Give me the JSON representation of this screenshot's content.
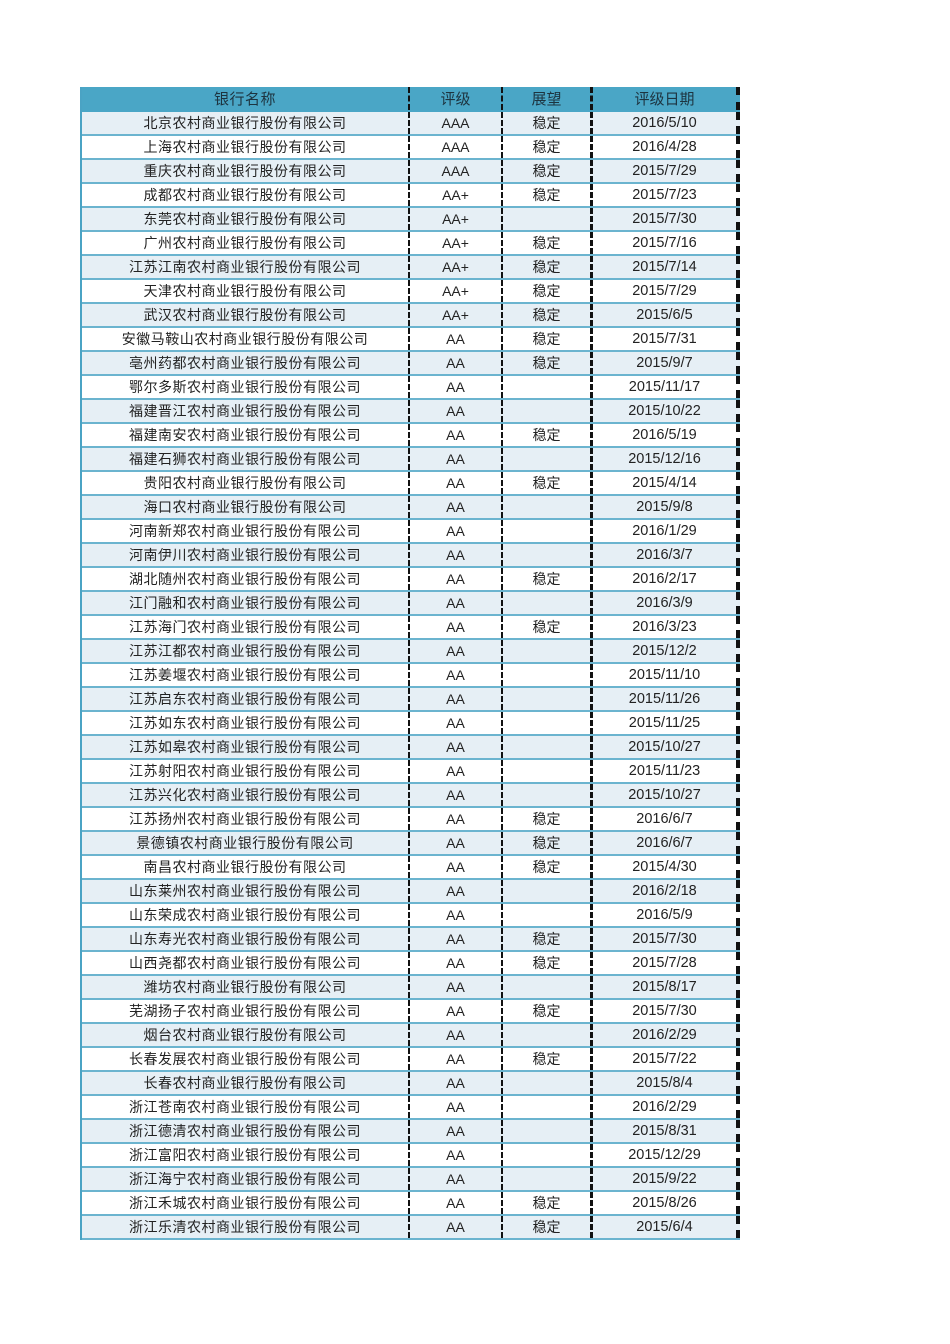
{
  "header": {
    "name": "银行名称",
    "rating": "评级",
    "outlook": "展望",
    "date": "评级日期"
  },
  "colors": {
    "header_bg": "#4aa6c6",
    "alt_row": "#e6eff5",
    "row_line": "#6bb4cf"
  },
  "rows": [
    [
      "北京农村商业银行股份有限公司",
      "AAA",
      "稳定",
      "2016/5/10"
    ],
    [
      "上海农村商业银行股份有限公司",
      "AAA",
      "稳定",
      "2016/4/28"
    ],
    [
      "重庆农村商业银行股份有限公司",
      "AAA",
      "稳定",
      "2015/7/29"
    ],
    [
      "成都农村商业银行股份有限公司",
      "AA+",
      "稳定",
      "2015/7/23"
    ],
    [
      "东莞农村商业银行股份有限公司",
      "AA+",
      "",
      "2015/7/30"
    ],
    [
      "广州农村商业银行股份有限公司",
      "AA+",
      "稳定",
      "2015/7/16"
    ],
    [
      "江苏江南农村商业银行股份有限公司",
      "AA+",
      "稳定",
      "2015/7/14"
    ],
    [
      "天津农村商业银行股份有限公司",
      "AA+",
      "稳定",
      "2015/7/29"
    ],
    [
      "武汉农村商业银行股份有限公司",
      "AA+",
      "稳定",
      "2015/6/5"
    ],
    [
      "安徽马鞍山农村商业银行股份有限公司",
      "AA",
      "稳定",
      "2015/7/31"
    ],
    [
      "亳州药都农村商业银行股份有限公司",
      "AA",
      "稳定",
      "2015/9/7"
    ],
    [
      "鄂尔多斯农村商业银行股份有限公司",
      "AA",
      "",
      "2015/11/17"
    ],
    [
      "福建晋江农村商业银行股份有限公司",
      "AA",
      "",
      "2015/10/22"
    ],
    [
      "福建南安农村商业银行股份有限公司",
      "AA",
      "稳定",
      "2016/5/19"
    ],
    [
      "福建石狮农村商业银行股份有限公司",
      "AA",
      "",
      "2015/12/16"
    ],
    [
      "贵阳农村商业银行股份有限公司",
      "AA",
      "稳定",
      "2015/4/14"
    ],
    [
      "海口农村商业银行股份有限公司",
      "AA",
      "",
      "2015/9/8"
    ],
    [
      "河南新郑农村商业银行股份有限公司",
      "AA",
      "",
      "2016/1/29"
    ],
    [
      "河南伊川农村商业银行股份有限公司",
      "AA",
      "",
      "2016/3/7"
    ],
    [
      "湖北随州农村商业银行股份有限公司",
      "AA",
      "稳定",
      "2016/2/17"
    ],
    [
      "江门融和农村商业银行股份有限公司",
      "AA",
      "",
      "2016/3/9"
    ],
    [
      "江苏海门农村商业银行股份有限公司",
      "AA",
      "稳定",
      "2016/3/23"
    ],
    [
      "江苏江都农村商业银行股份有限公司",
      "AA",
      "",
      "2015/12/2"
    ],
    [
      "江苏姜堰农村商业银行股份有限公司",
      "AA",
      "",
      "2015/11/10"
    ],
    [
      "江苏启东农村商业银行股份有限公司",
      "AA",
      "",
      "2015/11/26"
    ],
    [
      "江苏如东农村商业银行股份有限公司",
      "AA",
      "",
      "2015/11/25"
    ],
    [
      "江苏如皋农村商业银行股份有限公司",
      "AA",
      "",
      "2015/10/27"
    ],
    [
      "江苏射阳农村商业银行股份有限公司",
      "AA",
      "",
      "2015/11/23"
    ],
    [
      "江苏兴化农村商业银行股份有限公司",
      "AA",
      "",
      "2015/10/27"
    ],
    [
      "江苏扬州农村商业银行股份有限公司",
      "AA",
      "稳定",
      "2016/6/7"
    ],
    [
      "景德镇农村商业银行股份有限公司",
      "AA",
      "稳定",
      "2016/6/7"
    ],
    [
      "南昌农村商业银行股份有限公司",
      "AA",
      "稳定",
      "2015/4/30"
    ],
    [
      "山东莱州农村商业银行股份有限公司",
      "AA",
      "",
      "2016/2/18"
    ],
    [
      "山东荣成农村商业银行股份有限公司",
      "AA",
      "",
      "2016/5/9"
    ],
    [
      "山东寿光农村商业银行股份有限公司",
      "AA",
      "稳定",
      "2015/7/30"
    ],
    [
      "山西尧都农村商业银行股份有限公司",
      "AA",
      "稳定",
      "2015/7/28"
    ],
    [
      "潍坊农村商业银行股份有限公司",
      "AA",
      "",
      "2015/8/17"
    ],
    [
      "芜湖扬子农村商业银行股份有限公司",
      "AA",
      "稳定",
      "2015/7/30"
    ],
    [
      "烟台农村商业银行股份有限公司",
      "AA",
      "",
      "2016/2/29"
    ],
    [
      "长春发展农村商业银行股份有限公司",
      "AA",
      "稳定",
      "2015/7/22"
    ],
    [
      "长春农村商业银行股份有限公司",
      "AA",
      "",
      "2015/8/4"
    ],
    [
      "浙江苍南农村商业银行股份有限公司",
      "AA",
      "",
      "2016/2/29"
    ],
    [
      "浙江德清农村商业银行股份有限公司",
      "AA",
      "",
      "2015/8/31"
    ],
    [
      "浙江富阳农村商业银行股份有限公司",
      "AA",
      "",
      "2015/12/29"
    ],
    [
      "浙江海宁农村商业银行股份有限公司",
      "AA",
      "",
      "2015/9/22"
    ],
    [
      "浙江禾城农村商业银行股份有限公司",
      "AA",
      "稳定",
      "2015/8/26"
    ],
    [
      "浙江乐清农村商业银行股份有限公司",
      "AA",
      "稳定",
      "2015/6/4"
    ]
  ]
}
